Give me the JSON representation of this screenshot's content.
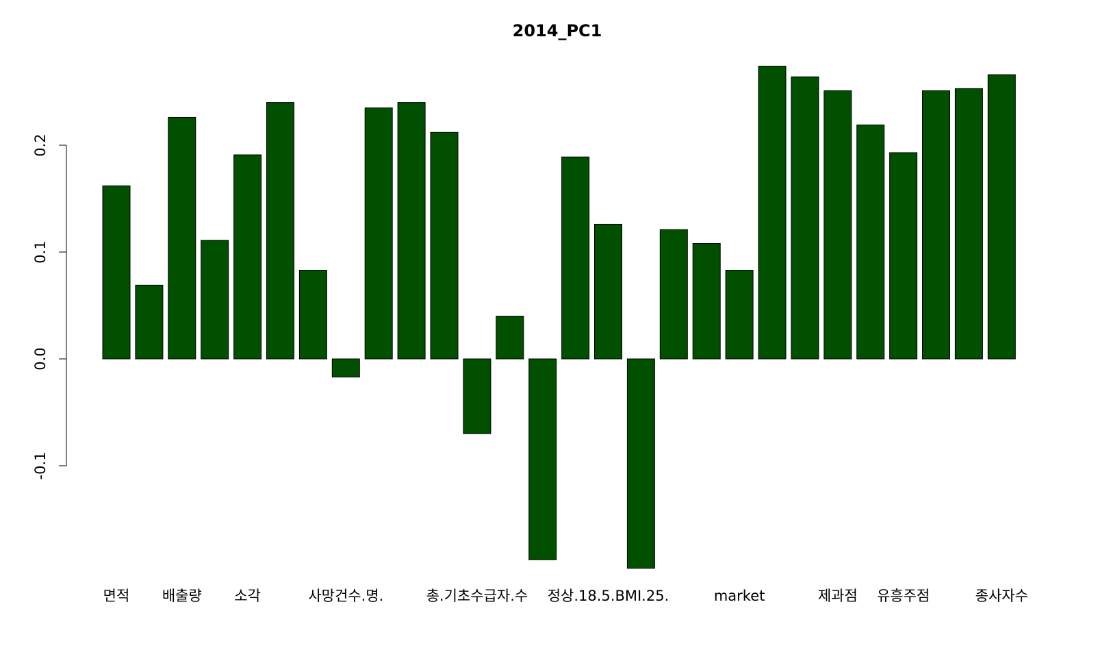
{
  "chart_data": {
    "type": "bar",
    "title": "2014_PC1",
    "categories": [
      "면적",
      null,
      "배출량",
      null,
      "소각",
      null,
      null,
      "사망건수.명.",
      null,
      null,
      null,
      "총.기초수급자.수",
      null,
      null,
      null,
      "정상.18.5.BMI.25.",
      null,
      null,
      null,
      "market",
      null,
      null,
      "제과점",
      null,
      "유흥주점",
      null,
      null,
      "종사자수"
    ],
    "values": [
      0.162,
      0.069,
      0.226,
      0.111,
      0.191,
      0.24,
      0.083,
      -0.017,
      0.235,
      0.24,
      0.212,
      -0.07,
      0.04,
      -0.188,
      0.189,
      0.126,
      -0.196,
      0.121,
      0.108,
      0.083,
      0.274,
      0.264,
      0.251,
      0.219,
      0.193,
      0.251,
      0.253,
      0.266
    ],
    "color": "#005000",
    "ylim": [
      -0.2,
      0.28
    ],
    "yticks": [
      {
        "value": -0.1,
        "label": "-0.1"
      },
      {
        "value": 0,
        "label": "0.0"
      },
      {
        "value": 0.1,
        "label": "0.1"
      },
      {
        "value": 0.2,
        "label": "0.2"
      }
    ]
  }
}
